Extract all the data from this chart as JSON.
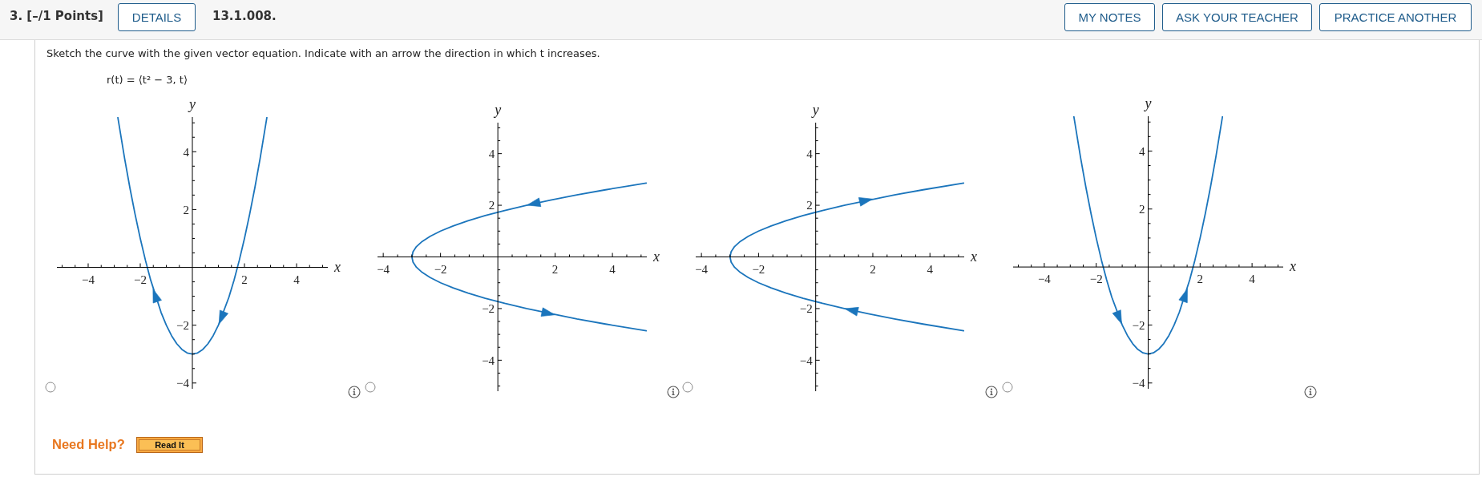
{
  "chart_data": [
    {
      "type": "line",
      "title": "Sketch the curve with the given vector equation. Indicate with an arrow the direction in which t increases.",
      "subtitle": "r(t) = ⟨t² − 3, t⟩",
      "annotations": [
        "3. [–/1 Points]",
        "DETAILS",
        "13.1.008.",
        "MY NOTES",
        "ASK YOUR TEACHER",
        "PRACTICE ANOTHER",
        "Need Help?",
        "Read It"
      ],
      "xlabel": "x",
      "ylabel": "y",
      "xlim": [
        -5.2,
        5.2
      ],
      "ylim": [
        -4.2,
        5.2
      ],
      "xticks": [
        {
          "value": -5,
          "label": null
        },
        {
          "value": -4.5,
          "label": null
        },
        -4,
        {
          "value": -3.5,
          "label": null
        },
        {
          "value": -3,
          "label": null
        },
        {
          "value": -2.5,
          "label": null
        },
        -2,
        {
          "value": -1.5,
          "label": null
        },
        {
          "value": -1,
          "label": null
        },
        {
          "value": -0.5,
          "label": null
        },
        {
          "value": 0.5,
          "label": null
        },
        {
          "value": 1,
          "label": null
        },
        {
          "value": 1.5,
          "label": null
        },
        2,
        {
          "value": 2.5,
          "label": null
        },
        {
          "value": 3,
          "label": null
        },
        {
          "value": 3.5,
          "label": null
        },
        4,
        {
          "value": 4.5,
          "label": null
        },
        {
          "value": 5,
          "label": null
        }
      ],
      "yticks": [
        -4,
        {
          "value": -3.5,
          "label": null
        },
        {
          "value": -3,
          "label": null
        },
        {
          "value": -2.5,
          "label": null
        },
        -2,
        {
          "value": -1.5,
          "label": null
        },
        {
          "value": -1,
          "label": null
        },
        {
          "value": -0.5,
          "label": null
        },
        {
          "value": 0.5,
          "label": null
        },
        {
          "value": 1,
          "label": null
        },
        {
          "value": 1.5,
          "label": null
        },
        2,
        {
          "value": 2.5,
          "label": null
        },
        {
          "value": 3,
          "label": null
        },
        {
          "value": 3.5,
          "label": null
        },
        4,
        {
          "value": 4.5,
          "label": null
        },
        {
          "value": 5,
          "label": null
        }
      ],
      "series": [
        {
          "color": "#1b75bc",
          "x": [
            2.86,
            2.6,
            2.4,
            2.2,
            2,
            1.8,
            1.6,
            1.4,
            1,
            0.8,
            0.6,
            0.4,
            0.2,
            0,
            -0.2,
            -0.4,
            -0.6,
            -0.8,
            -1,
            -1.2,
            -1.6,
            -1.8,
            -2,
            -2.2,
            -2.4,
            -2.6,
            -2.86
          ],
          "values": [
            5.18,
            3.76,
            2.76,
            1.84,
            1,
            0.24,
            -0.44,
            -1.04,
            -2,
            -2.36,
            -2.64,
            -2.84,
            -2.96,
            -3,
            -2.96,
            -2.84,
            -2.64,
            -2.36,
            -2,
            -1.56,
            -0.44,
            0.24,
            1,
            1.84,
            2.76,
            3.76,
            5.18
          ]
        },
        {
          "type": "scatter",
          "marker": "triangle",
          "color": "#1b75bc",
          "x": [
            -1.4,
            1.15
          ],
          "values": [
            -1.04,
            -1.68
          ]
        }
      ]
    },
    {
      "type": "line",
      "xlabel": "x",
      "ylabel": "y",
      "xlim": [
        -4.2,
        5.2
      ],
      "ylim": [
        -5.2,
        5.2
      ],
      "xticks": [
        -4,
        {
          "value": -3.5,
          "label": null
        },
        {
          "value": -3,
          "label": null
        },
        {
          "value": -2.5,
          "label": null
        },
        -2,
        {
          "value": -1.5,
          "label": null
        },
        {
          "value": -1,
          "label": null
        },
        {
          "value": -0.5,
          "label": null
        },
        {
          "value": 0.5,
          "label": null
        },
        {
          "value": 1,
          "label": null
        },
        {
          "value": 1.5,
          "label": null
        },
        2,
        {
          "value": 2.5,
          "label": null
        },
        {
          "value": 3,
          "label": null
        },
        {
          "value": 3.5,
          "label": null
        },
        4,
        {
          "value": 4.5,
          "label": null
        },
        {
          "value": 5,
          "label": null
        }
      ],
      "yticks": [
        {
          "value": -5,
          "label": null
        },
        {
          "value": -4.5,
          "label": null
        },
        -4,
        {
          "value": -3.5,
          "label": null
        },
        {
          "value": -3,
          "label": null
        },
        {
          "value": -2.5,
          "label": null
        },
        -2,
        {
          "value": -1.5,
          "label": null
        },
        {
          "value": -1,
          "label": null
        },
        {
          "value": -0.5,
          "label": null
        },
        {
          "value": 0.5,
          "label": null
        },
        {
          "value": 1,
          "label": null
        },
        {
          "value": 1.5,
          "label": null
        },
        2,
        {
          "value": 2.5,
          "label": null
        },
        {
          "value": 3,
          "label": null
        },
        {
          "value": 3.5,
          "label": null
        },
        4,
        {
          "value": 4.5,
          "label": null
        },
        {
          "value": 5,
          "label": null
        }
      ],
      "series": [
        {
          "color": "#1b75bc",
          "x": [
            5.18,
            3.76,
            2.76,
            1.84,
            1,
            0.24,
            -0.44,
            -1.04,
            -1.56,
            -2,
            -2.36,
            -2.64,
            -2.84,
            -2.96,
            -3,
            -2.96,
            -2.84,
            -2.64,
            -2.36,
            -2,
            -1.56,
            -1.04,
            -0.44,
            0.24,
            1,
            2.76,
            3.76,
            5.18
          ],
          "values": [
            2.86,
            2.6,
            2.4,
            2.2,
            2,
            1.8,
            1.6,
            1.4,
            1.2,
            1,
            0.8,
            0.6,
            0.4,
            0.2,
            0,
            -0.2,
            -0.4,
            -0.6,
            -0.8,
            -1,
            -1.2,
            -1.4,
            -1.6,
            -1.8,
            -2,
            -2.4,
            -2.6,
            -2.86
          ]
        },
        {
          "type": "scatter",
          "marker": "triangle",
          "color": "#1b75bc",
          "x": [
            1.32,
            1.69
          ],
          "values": [
            2.08,
            -2.17
          ]
        }
      ]
    },
    {
      "type": "line",
      "xlabel": "x",
      "ylabel": "y",
      "xlim": [
        -4.2,
        5.2
      ],
      "ylim": [
        -5.2,
        5.2
      ],
      "xticks": [
        -4,
        {
          "value": -3.5,
          "label": null
        },
        {
          "value": -3,
          "label": null
        },
        {
          "value": -2.5,
          "label": null
        },
        -2,
        {
          "value": -1.5,
          "label": null
        },
        {
          "value": -1,
          "label": null
        },
        {
          "value": -0.5,
          "label": null
        },
        {
          "value": 0.5,
          "label": null
        },
        {
          "value": 1,
          "label": null
        },
        {
          "value": 1.5,
          "label": null
        },
        2,
        {
          "value": 2.5,
          "label": null
        },
        {
          "value": 3,
          "label": null
        },
        {
          "value": 3.5,
          "label": null
        },
        4,
        {
          "value": 4.5,
          "label": null
        },
        {
          "value": 5,
          "label": null
        }
      ],
      "yticks": [
        {
          "value": -5,
          "label": null
        },
        {
          "value": -4.5,
          "label": null
        },
        -4,
        {
          "value": -3.5,
          "label": null
        },
        {
          "value": -3,
          "label": null
        },
        {
          "value": -2.5,
          "label": null
        },
        -2,
        {
          "value": -1.5,
          "label": null
        },
        {
          "value": -1,
          "label": null
        },
        {
          "value": -0.5,
          "label": null
        },
        {
          "value": 0.5,
          "label": null
        },
        {
          "value": 1,
          "label": null
        },
        {
          "value": 1.5,
          "label": null
        },
        2,
        {
          "value": 2.5,
          "label": null
        },
        {
          "value": 3,
          "label": null
        },
        {
          "value": 3.5,
          "label": null
        },
        4,
        {
          "value": 4.5,
          "label": null
        },
        {
          "value": 5,
          "label": null
        }
      ],
      "series": [
        {
          "color": "#1b75bc",
          "x": [
            5.18,
            3.76,
            2.76,
            1.84,
            1,
            0.24,
            -0.44,
            -1.04,
            -1.56,
            -2,
            -2.36,
            -2.64,
            -2.84,
            -2.96,
            -3,
            -2.96,
            -2.84,
            -2.64,
            -2.36,
            -2,
            -1.56,
            -1.04,
            -0.44,
            0.24,
            1,
            2.76,
            3.76,
            5.18
          ],
          "values": [
            -2.86,
            -2.6,
            -2.4,
            -2.2,
            -2,
            -1.8,
            -1.6,
            -1.4,
            -1.2,
            -1,
            -0.8,
            -0.6,
            -0.4,
            -0.2,
            0,
            0.2,
            0.4,
            0.6,
            0.8,
            1,
            1.2,
            1.4,
            1.6,
            1.8,
            2,
            2.4,
            2.6,
            2.86
          ]
        },
        {
          "type": "scatter",
          "marker": "triangle",
          "color": "#1b75bc",
          "x": [
            1.69,
            1.32
          ],
          "values": [
            2.17,
            -2.08
          ]
        }
      ]
    },
    {
      "type": "line",
      "xlabel": "x",
      "ylabel": "y",
      "xlim": [
        -5.2,
        5.2
      ],
      "ylim": [
        -4.2,
        5.2
      ],
      "xticks": [
        {
          "value": -5,
          "label": null
        },
        {
          "value": -4.5,
          "label": null
        },
        -4,
        {
          "value": -3.5,
          "label": null
        },
        {
          "value": -3,
          "label": null
        },
        {
          "value": -2.5,
          "label": null
        },
        -2,
        {
          "value": -1.5,
          "label": null
        },
        {
          "value": -1,
          "label": null
        },
        {
          "value": -0.5,
          "label": null
        },
        {
          "value": 0.5,
          "label": null
        },
        {
          "value": 1,
          "label": null
        },
        {
          "value": 1.5,
          "label": null
        },
        2,
        {
          "value": 2.5,
          "label": null
        },
        {
          "value": 3,
          "label": null
        },
        {
          "value": 3.5,
          "label": null
        },
        4,
        {
          "value": 4.5,
          "label": null
        },
        {
          "value": 5,
          "label": null
        }
      ],
      "yticks": [
        -4,
        {
          "value": -3.5,
          "label": null
        },
        {
          "value": -3,
          "label": null
        },
        {
          "value": -2.5,
          "label": null
        },
        -2,
        {
          "value": -1.5,
          "label": null
        },
        {
          "value": -1,
          "label": null
        },
        {
          "value": -0.5,
          "label": null
        },
        {
          "value": 0.5,
          "label": null
        },
        {
          "value": 1,
          "label": null
        },
        {
          "value": 1.5,
          "label": null
        },
        2,
        {
          "value": 2.5,
          "label": null
        },
        {
          "value": 3,
          "label": null
        },
        {
          "value": 3.5,
          "label": null
        },
        4,
        {
          "value": 4.5,
          "label": null
        },
        {
          "value": 5,
          "label": null
        }
      ],
      "series": [
        {
          "color": "#1b75bc",
          "x": [
            -2.86,
            -2.6,
            -2.4,
            -2.2,
            -2,
            -1.8,
            -1.6,
            -1.4,
            -1,
            -0.8,
            -0.6,
            -0.4,
            -0.2,
            0,
            0.2,
            0.4,
            0.6,
            0.8,
            1,
            1.2,
            1.6,
            1.8,
            2,
            2.2,
            2.4,
            2.6,
            2.86
          ],
          "values": [
            5.18,
            3.76,
            2.76,
            1.84,
            1,
            0.24,
            -0.44,
            -1.04,
            -2,
            -2.36,
            -2.64,
            -2.84,
            -2.96,
            -3,
            -2.96,
            -2.84,
            -2.64,
            -2.36,
            -2,
            -1.56,
            -0.44,
            0.24,
            1,
            1.84,
            2.76,
            3.76,
            5.18
          ]
        },
        {
          "type": "scatter",
          "marker": "triangle",
          "color": "#1b75bc",
          "x": [
            -1.15,
            1.4
          ],
          "values": [
            -1.68,
            -1.04
          ]
        }
      ]
    }
  ]
}
